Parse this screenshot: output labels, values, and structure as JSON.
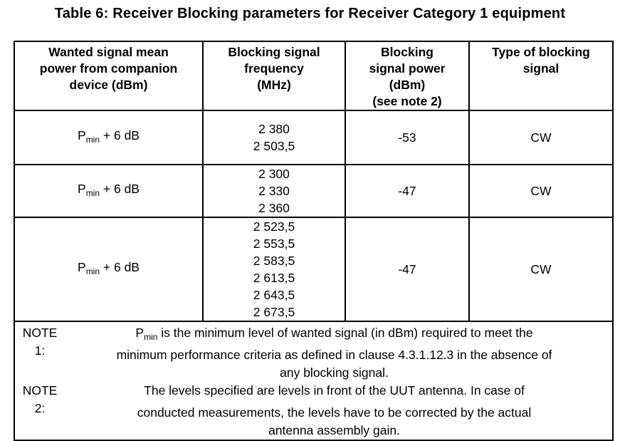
{
  "colors": {
    "text": "#000000",
    "background": "#ffffff",
    "border": "#000000"
  },
  "title": "Table 6: Receiver Blocking parameters for Receiver Category 1 equipment",
  "table": {
    "headers": [
      {
        "lines": [
          "Wanted signal mean",
          "power from companion",
          "device (dBm)"
        ]
      },
      {
        "lines": [
          "Blocking signal",
          "frequency",
          "(MHz)"
        ]
      },
      {
        "lines": [
          "Blocking",
          "signal power",
          "(dBm)",
          "(see note 2)"
        ]
      },
      {
        "lines": [
          "Type of blocking",
          "signal"
        ]
      }
    ],
    "rows": [
      {
        "wanted": {
          "base": "P",
          "sub": "min",
          "rest": " + 6 dB"
        },
        "frequencies": [
          "2 380",
          "2 503,5"
        ],
        "power": "-53",
        "type": "CW"
      },
      {
        "wanted": {
          "base": "P",
          "sub": "min",
          "rest": " + 6 dB"
        },
        "frequencies": [
          "2 300",
          "2 330",
          "2 360"
        ],
        "power": "-47",
        "type": "CW"
      },
      {
        "wanted": {
          "base": "P",
          "sub": "min",
          "rest": " + 6 dB"
        },
        "frequencies": [
          "2 523,5",
          "2 553,5",
          "2 583,5",
          "2 613,5",
          "2 643,5",
          "2 673,5"
        ],
        "power": "-47",
        "type": "CW"
      }
    ],
    "notes": [
      {
        "label": "NOTE 1:",
        "pre": "P",
        "sub": "min",
        "lines": [
          " is the minimum level of wanted signal (in dBm) required to meet the",
          "minimum performance criteria as defined in clause 4.3.1.12.3 in the absence of",
          "any blocking signal."
        ]
      },
      {
        "label": "NOTE 2:",
        "pre": "",
        "sub": "",
        "lines": [
          "The levels specified are levels in front of the UUT antenna. In case of",
          "conducted measurements, the levels have to be corrected by the actual",
          "antenna assembly gain."
        ]
      }
    ]
  }
}
